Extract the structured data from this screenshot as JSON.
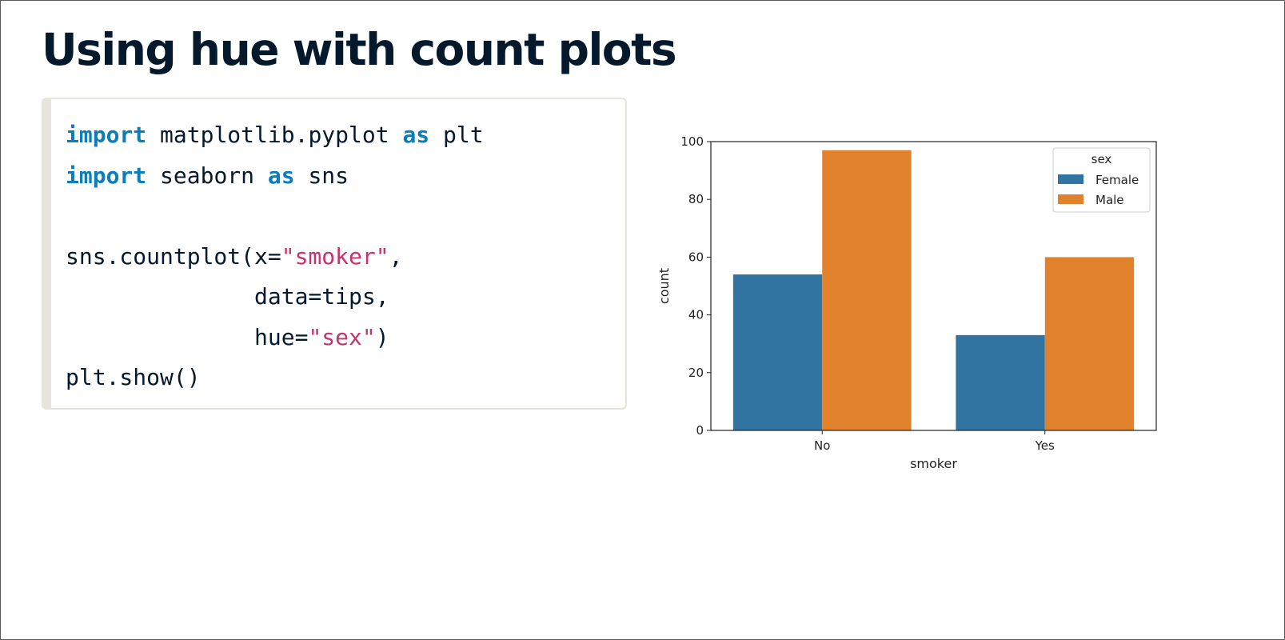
{
  "slide": {
    "title": "Using hue with count plots"
  },
  "code": {
    "lines": [
      [
        {
          "t": "import",
          "c": "kw"
        },
        {
          "t": " matplotlib.pyplot ",
          "c": "plain"
        },
        {
          "t": "as",
          "c": "kw"
        },
        {
          "t": " plt",
          "c": "plain"
        }
      ],
      [
        {
          "t": "import",
          "c": "kw"
        },
        {
          "t": " seaborn ",
          "c": "plain"
        },
        {
          "t": "as",
          "c": "kw"
        },
        {
          "t": " sns",
          "c": "plain"
        }
      ],
      [],
      [
        {
          "t": "sns.countplot(x=",
          "c": "plain"
        },
        {
          "t": "\"smoker\"",
          "c": "str"
        },
        {
          "t": ",",
          "c": "plain"
        }
      ],
      [
        {
          "t": "              data=tips,",
          "c": "plain"
        }
      ],
      [
        {
          "t": "              hue=",
          "c": "plain"
        },
        {
          "t": "\"sex\"",
          "c": "str"
        },
        {
          "t": ")",
          "c": "plain"
        }
      ],
      [
        {
          "t": "plt.show()",
          "c": "plain"
        }
      ]
    ]
  },
  "chart_data": {
    "type": "bar",
    "categories": [
      "No",
      "Yes"
    ],
    "series": [
      {
        "name": "Female",
        "values": [
          54,
          33
        ],
        "color": "#3274a1"
      },
      {
        "name": "Male",
        "values": [
          97,
          60
        ],
        "color": "#e1812c"
      }
    ],
    "xlabel": "smoker",
    "ylabel": "count",
    "ylim": [
      0,
      100
    ],
    "yticks": [
      0,
      20,
      40,
      60,
      80,
      100
    ],
    "legend": {
      "title": "sex",
      "position": "top-right"
    },
    "grid": false
  }
}
